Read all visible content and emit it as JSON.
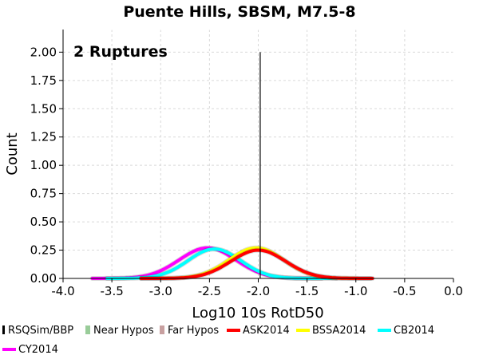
{
  "chart_data": {
    "type": "line",
    "title": "Puente Hills, SBSM, M7.5-8",
    "annotation": "2 Ruptures",
    "xlabel": "Log10 10s RotD50",
    "ylabel": "Count",
    "xlim": [
      -4.0,
      0.0
    ],
    "ylim": [
      0.0,
      2.2
    ],
    "x_ticks": [
      "-4.0",
      "-3.5",
      "-3.0",
      "-2.5",
      "-2.0",
      "-1.5",
      "-1.0",
      "-0.5",
      "0.0"
    ],
    "y_ticks": [
      "0.00",
      "0.25",
      "0.50",
      "0.75",
      "1.00",
      "1.25",
      "1.50",
      "1.75",
      "2.00"
    ],
    "grid": true,
    "legend_position": "bottom",
    "series": [
      {
        "name": "RSQSim/BBP",
        "kind": "spike",
        "color": "#000000",
        "x": -1.98,
        "y": 2.0
      },
      {
        "name": "Near Hypos",
        "kind": "legend-only",
        "color": "#99cc99"
      },
      {
        "name": "Far Hypos",
        "kind": "legend-only",
        "color": "#c8a0a0"
      },
      {
        "name": "ASK2014",
        "kind": "gaussian",
        "color": "#ff0000",
        "mean": -2.0,
        "sd": 0.28,
        "peak": 0.25,
        "x_range": [
          -3.2,
          -0.83
        ]
      },
      {
        "name": "BSSA2014",
        "kind": "gaussian",
        "color": "#ffff00",
        "mean": -2.02,
        "sd": 0.28,
        "peak": 0.27,
        "x_range": [
          -3.2,
          -0.85
        ]
      },
      {
        "name": "CB2014",
        "kind": "gaussian",
        "color": "#00ffff",
        "mean": -2.45,
        "sd": 0.27,
        "peak": 0.26,
        "x_range": [
          -3.55,
          -1.2
        ]
      },
      {
        "name": "CY2014",
        "kind": "gaussian",
        "color": "#ff00ff",
        "mean": -2.52,
        "sd": 0.29,
        "peak": 0.27,
        "x_range": [
          -3.7,
          -1.35
        ]
      }
    ]
  }
}
